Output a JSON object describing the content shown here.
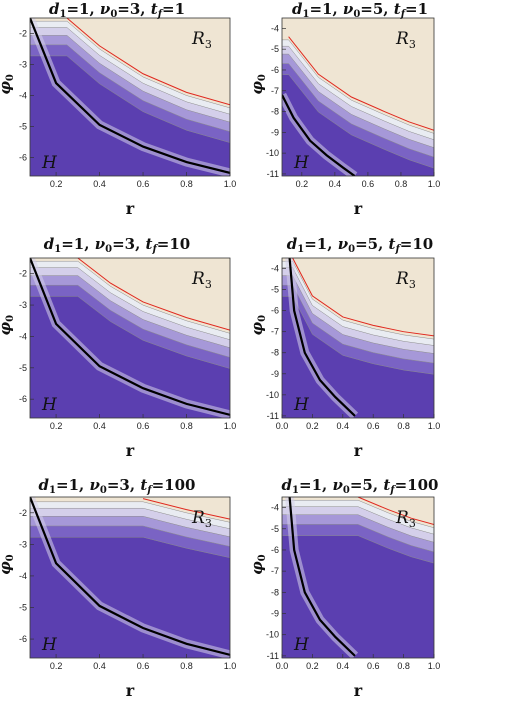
{
  "chart_data": [
    {
      "type": "contour",
      "title": "d1=1, v0=3, tf=1",
      "title_parts": {
        "d": "d",
        "d_sub": "1",
        "d_val": "=1,",
        "v": "ν",
        "v_sub": "0",
        "v_val": "=3,",
        "t": "t",
        "t_sub": "f",
        "t_val": "=1"
      },
      "xlabel": "r",
      "ylabel": "φ0",
      "ylabel_main": "φ",
      "ylabel_sub": "0",
      "xlim": [
        0.08,
        1.0
      ],
      "ylim": [
        -6.6,
        -1.5
      ],
      "xticks": [
        "0.2",
        "0.4",
        "0.6",
        "0.8",
        "1.0"
      ],
      "xtick_values": [
        0.2,
        0.4,
        0.6,
        0.8,
        1.0
      ],
      "yticks": [
        "-2",
        "-3",
        "-4",
        "-5",
        "-6"
      ],
      "ytick_values": [
        -2,
        -3,
        -4,
        -5,
        -6
      ],
      "regions": {
        "upper": "R3",
        "upper_main": "R",
        "upper_sub": "3",
        "lower": "H"
      },
      "black_curve": {
        "x": [
          0.08,
          0.2,
          0.4,
          0.6,
          0.8,
          1.0
        ],
        "y": [
          -1.5,
          -3.6,
          -4.95,
          -5.65,
          -6.15,
          -6.5
        ]
      },
      "red_curve": {
        "x": [
          0.25,
          0.4,
          0.6,
          0.8,
          1.0
        ],
        "y": [
          -1.5,
          -2.4,
          -3.3,
          -3.9,
          -4.3
        ]
      }
    },
    {
      "type": "contour",
      "title": "d1=1, v0=5, tf=1",
      "title_parts": {
        "d": "d",
        "d_sub": "1",
        "d_val": "=1,",
        "v": "ν",
        "v_sub": "0",
        "v_val": "=5,",
        "t": "t",
        "t_sub": "f",
        "t_val": "=1"
      },
      "xlabel": "r",
      "ylabel": "φ0",
      "ylabel_main": "φ",
      "ylabel_sub": "0",
      "xlim": [
        0.08,
        1.0
      ],
      "ylim": [
        -11.1,
        -3.5
      ],
      "xticks": [
        "0.2",
        "0.4",
        "0.6",
        "0.8",
        "1.0"
      ],
      "xtick_values": [
        0.2,
        0.4,
        0.6,
        0.8,
        1.0
      ],
      "yticks": [
        "-4",
        "-5",
        "-6",
        "-7",
        "-8",
        "-9",
        "-10",
        "-11"
      ],
      "ytick_values": [
        -4,
        -5,
        -6,
        -7,
        -8,
        -9,
        -10,
        -11
      ],
      "regions": {
        "upper": "R3",
        "upper_main": "R",
        "upper_sub": "3",
        "lower": "H"
      },
      "black_curve": {
        "x": [
          0.08,
          0.15,
          0.25,
          0.35,
          0.45,
          0.52
        ],
        "y": [
          -7.2,
          -8.3,
          -9.4,
          -10.1,
          -10.7,
          -11.1
        ]
      },
      "red_curve": {
        "x": [
          0.12,
          0.3,
          0.5,
          0.7,
          0.85,
          1.0
        ],
        "y": [
          -4.4,
          -6.2,
          -7.3,
          -8.0,
          -8.5,
          -8.9
        ]
      }
    },
    {
      "type": "contour",
      "title": "d1=1, v0=3, tf=10",
      "title_parts": {
        "d": "d",
        "d_sub": "1",
        "d_val": "=1,",
        "v": "ν",
        "v_sub": "0",
        "v_val": "=3,",
        "t": "t",
        "t_sub": "f",
        "t_val": "=10"
      },
      "xlabel": "r",
      "ylabel": "φ0",
      "ylabel_main": "φ",
      "ylabel_sub": "0",
      "xlim": [
        0.08,
        1.0
      ],
      "ylim": [
        -6.6,
        -1.5
      ],
      "xticks": [
        "0.2",
        "0.4",
        "0.6",
        "0.8",
        "1.0"
      ],
      "xtick_values": [
        0.2,
        0.4,
        0.6,
        0.8,
        1.0
      ],
      "yticks": [
        "-2",
        "-3",
        "-4",
        "-5",
        "-6"
      ],
      "ytick_values": [
        -2,
        -3,
        -4,
        -5,
        -6
      ],
      "regions": {
        "upper": "R3",
        "upper_main": "R",
        "upper_sub": "3",
        "lower": "H"
      },
      "black_curve": {
        "x": [
          0.08,
          0.2,
          0.4,
          0.6,
          0.8,
          1.0
        ],
        "y": [
          -1.5,
          -3.6,
          -4.95,
          -5.65,
          -6.15,
          -6.5
        ]
      },
      "red_curve": {
        "x": [
          0.3,
          0.45,
          0.6,
          0.8,
          1.0
        ],
        "y": [
          -1.5,
          -2.3,
          -2.9,
          -3.4,
          -3.8
        ]
      }
    },
    {
      "type": "contour",
      "title": "d1=1, v0=5, tf=10",
      "title_parts": {
        "d": "d",
        "d_sub": "1",
        "d_val": "=1,",
        "v": "ν",
        "v_sub": "0",
        "v_val": "=5,",
        "t": "t",
        "t_sub": "f",
        "t_val": "=10"
      },
      "xlabel": "r",
      "ylabel": "φ0",
      "ylabel_main": "φ",
      "ylabel_sub": "0",
      "xlim": [
        0.0,
        1.0
      ],
      "ylim": [
        -11.1,
        -3.5
      ],
      "xticks": [
        "0.0",
        "0.2",
        "0.4",
        "0.6",
        "0.8",
        "1.0"
      ],
      "xtick_values": [
        0.0,
        0.2,
        0.4,
        0.6,
        0.8,
        1.0
      ],
      "yticks": [
        "-4",
        "-5",
        "-6",
        "-7",
        "-8",
        "-9",
        "-10",
        "-11"
      ],
      "ytick_values": [
        -4,
        -5,
        -6,
        -7,
        -8,
        -9,
        -10,
        -11
      ],
      "regions": {
        "upper": "R3",
        "upper_main": "R",
        "upper_sub": "3",
        "lower": "H"
      },
      "black_curve": {
        "x": [
          0.05,
          0.08,
          0.15,
          0.25,
          0.35,
          0.48
        ],
        "y": [
          -3.5,
          -6.0,
          -8.0,
          -9.3,
          -10.1,
          -11.0
        ]
      },
      "red_curve": {
        "x": [
          0.07,
          0.2,
          0.4,
          0.6,
          0.8,
          1.0
        ],
        "y": [
          -3.5,
          -5.3,
          -6.3,
          -6.7,
          -7.0,
          -7.2
        ]
      }
    },
    {
      "type": "contour",
      "title": "d1=1, v0=3, tf=100",
      "title_parts": {
        "d": "d",
        "d_sub": "1",
        "d_val": "=1,",
        "v": "ν",
        "v_sub": "0",
        "v_val": "=3,",
        "t": "t",
        "t_sub": "f",
        "t_val": "=100"
      },
      "xlabel": "r",
      "ylabel": "φ0",
      "ylabel_main": "φ",
      "ylabel_sub": "0",
      "xlim": [
        0.08,
        1.0
      ],
      "ylim": [
        -6.6,
        -1.5
      ],
      "xticks": [
        "0.2",
        "0.4",
        "0.6",
        "0.8",
        "1.0"
      ],
      "xtick_values": [
        0.2,
        0.4,
        0.6,
        0.8,
        1.0
      ],
      "yticks": [
        "-2",
        "-3",
        "-4",
        "-5",
        "-6"
      ],
      "ytick_values": [
        -2,
        -3,
        -4,
        -5,
        -6
      ],
      "regions": {
        "upper": "R3",
        "upper_main": "R",
        "upper_sub": "3",
        "lower": "H"
      },
      "black_curve": {
        "x": [
          0.08,
          0.2,
          0.4,
          0.6,
          0.8,
          1.0
        ],
        "y": [
          -1.5,
          -3.6,
          -4.95,
          -5.65,
          -6.15,
          -6.5
        ]
      },
      "red_curve": {
        "x": [
          0.6,
          0.8,
          1.0
        ],
        "y": [
          -1.55,
          -1.9,
          -2.2
        ]
      }
    },
    {
      "type": "contour",
      "title": "d1=1, v0=5, tf=100",
      "title_parts": {
        "d": "d",
        "d_sub": "1",
        "d_val": "=1,",
        "v": "ν",
        "v_sub": "0",
        "v_val": "=5,",
        "t": "t",
        "t_sub": "f",
        "t_val": "=100"
      },
      "xlabel": "r",
      "ylabel": "φ0",
      "ylabel_main": "φ",
      "ylabel_sub": "0",
      "xlim": [
        0.0,
        1.0
      ],
      "ylim": [
        -11.1,
        -3.5
      ],
      "xticks": [
        "0.0",
        "0.2",
        "0.4",
        "0.6",
        "0.8",
        "1.0"
      ],
      "xtick_values": [
        0.0,
        0.2,
        0.4,
        0.6,
        0.8,
        1.0
      ],
      "yticks": [
        "-4",
        "-5",
        "-6",
        "-7",
        "-8",
        "-9",
        "-10",
        "-11"
      ],
      "ytick_values": [
        -4,
        -5,
        -6,
        -7,
        -8,
        -9,
        -10,
        -11
      ],
      "regions": {
        "upper": "R3",
        "upper_main": "R",
        "upper_sub": "3",
        "lower": "H"
      },
      "black_curve": {
        "x": [
          0.05,
          0.08,
          0.15,
          0.25,
          0.35,
          0.48
        ],
        "y": [
          -3.5,
          -6.0,
          -8.0,
          -9.3,
          -10.1,
          -11.0
        ]
      },
      "red_curve": {
        "x": [
          0.5,
          0.7,
          0.85,
          1.0
        ],
        "y": [
          -3.5,
          -4.1,
          -4.5,
          -4.8
        ]
      }
    }
  ],
  "colors": {
    "upper_region": "#efe5d3",
    "lower_region": "#5b3fb0",
    "band_dark": "#7a63c4",
    "band_mid": "#a698d8",
    "band_light": "#d4cfea",
    "band_pale": "#e9ecf2",
    "contour_line": "#8c8c8c",
    "black_curve": "#000000",
    "red_curve": "#e0281e"
  }
}
